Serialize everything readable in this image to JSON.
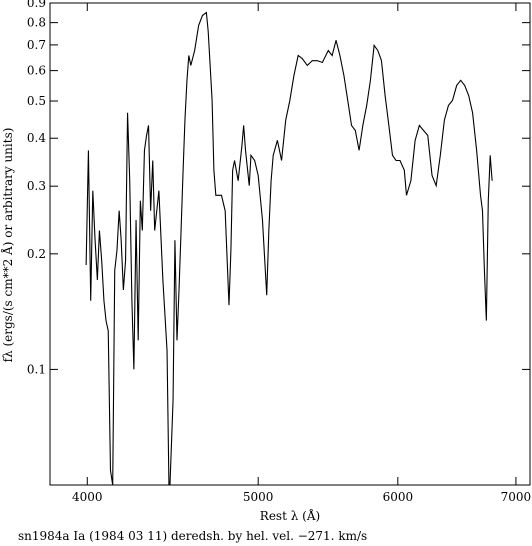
{
  "chart_data": {
    "type": "line",
    "x_label": "Rest λ (Å)",
    "y_label": "fλ (ergs/(s cm**2 Å) or arbitrary units)",
    "caption": "sn1984a Ia (1984 03 11) deredsh. by hel. vel.  −271. km/s",
    "log_x": true,
    "log_y": true,
    "xlim": [
      3810,
      7130
    ],
    "ylim": [
      0.05,
      0.9
    ],
    "xticks": [
      4000,
      5000,
      6000,
      7000
    ],
    "yticks": [
      0.1,
      0.2,
      0.3,
      0.4,
      0.5,
      0.6,
      0.7,
      0.8,
      0.9
    ],
    "x": [
      3994,
      4006,
      4018,
      4029,
      4041,
      4053,
      4064,
      4076,
      4088,
      4099,
      4111,
      4123,
      4135,
      4146,
      4158,
      4170,
      4181,
      4193,
      4205,
      4216,
      4228,
      4240,
      4251,
      4263,
      4275,
      4287,
      4298,
      4310,
      4322,
      4333,
      4345,
      4357,
      4368,
      4392,
      4415,
      4439,
      4450,
      4456,
      4474,
      4485,
      4497,
      4509,
      4520,
      4532,
      4544,
      4556,
      4567,
      4579,
      4602,
      4626,
      4649,
      4673,
      4684,
      4696,
      4708,
      4719,
      4731,
      4743,
      4766,
      4789,
      4813,
      4825,
      4836,
      4848,
      4871,
      4895,
      4906,
      4918,
      4942,
      4953,
      4977,
      5000,
      5028,
      5056,
      5070,
      5085,
      5099,
      5127,
      5155,
      5183,
      5211,
      5239,
      5268,
      5296,
      5331,
      5366,
      5401,
      5437,
      5479,
      5507,
      5535,
      5563,
      5592,
      5620,
      5648,
      5676,
      5704,
      5732,
      5761,
      5789,
      5817,
      5845,
      5873,
      5901,
      5930,
      5958,
      5986,
      6017,
      6051,
      6068,
      6103,
      6137,
      6171,
      6205,
      6239,
      6274,
      6308,
      6342,
      6376,
      6410,
      6444,
      6479,
      6513,
      6547,
      6581,
      6615,
      6650,
      6684,
      6701,
      6718,
      6735,
      6752,
      6769,
      6786
    ],
    "series": [
      {
        "color": "#000000",
        "values": [
          0.187,
          0.372,
          0.151,
          0.292,
          0.217,
          0.171,
          0.23,
          0.192,
          0.151,
          0.134,
          0.126,
          0.0546,
          0.05,
          0.181,
          0.204,
          0.259,
          0.217,
          0.161,
          0.192,
          0.466,
          0.31,
          0.151,
          0.1,
          0.245,
          0.119,
          0.275,
          0.23,
          0.372,
          0.407,
          0.432,
          0.259,
          0.35,
          0.23,
          0.292,
          0.171,
          0.112,
          0.05,
          0.05,
          0.083,
          0.217,
          0.119,
          0.161,
          0.223,
          0.32,
          0.446,
          0.566,
          0.657,
          0.619,
          0.677,
          0.787,
          0.835,
          0.85,
          0.76,
          0.619,
          0.502,
          0.33,
          0.284,
          0.284,
          0.284,
          0.259,
          0.147,
          0.204,
          0.33,
          0.35,
          0.31,
          0.383,
          0.432,
          0.372,
          0.301,
          0.361,
          0.35,
          0.32,
          0.245,
          0.156,
          0.23,
          0.31,
          0.361,
          0.395,
          0.35,
          0.446,
          0.502,
          0.583,
          0.657,
          0.645,
          0.619,
          0.637,
          0.637,
          0.63,
          0.677,
          0.657,
          0.72,
          0.657,
          0.583,
          0.502,
          0.432,
          0.419,
          0.372,
          0.432,
          0.487,
          0.566,
          0.698,
          0.677,
          0.637,
          0.517,
          0.432,
          0.361,
          0.35,
          0.35,
          0.33,
          0.284,
          0.31,
          0.395,
          0.432,
          0.419,
          0.407,
          0.32,
          0.301,
          0.361,
          0.446,
          0.487,
          0.502,
          0.549,
          0.566,
          0.549,
          0.517,
          0.466,
          0.372,
          0.284,
          0.259,
          0.181,
          0.134,
          0.275,
          0.361,
          0.31
        ]
      }
    ]
  }
}
